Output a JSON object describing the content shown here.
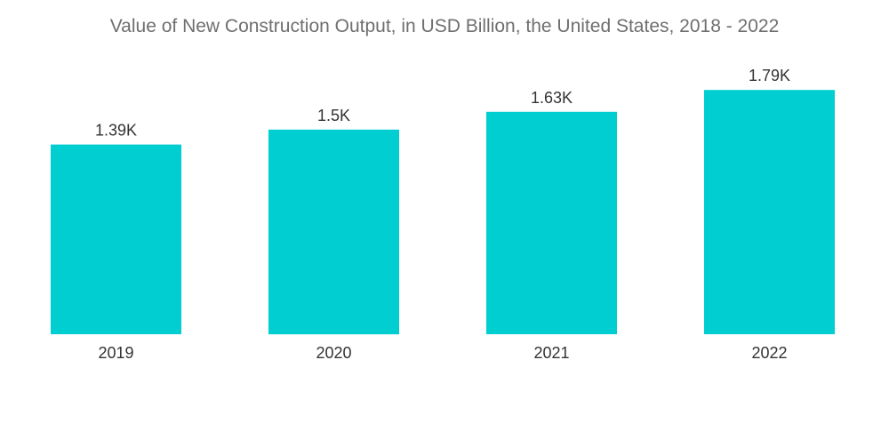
{
  "chart_data": {
    "type": "bar",
    "title": "Value of New Construction Output, in USD Billion, the United States, 2018 - 2022",
    "categories": [
      "2019",
      "2020",
      "2021",
      "2022"
    ],
    "values": [
      1390,
      1500,
      1630,
      1790
    ],
    "data_labels": [
      "1.39K",
      "1.5K",
      "1.63K",
      "1.79K"
    ],
    "xlabel": "",
    "ylabel": "",
    "ylim": [
      0,
      1900
    ],
    "grid": false,
    "legend": "none",
    "colors": {
      "bar": "#00ced1",
      "text": "#333333",
      "title": "#6f6f6f"
    }
  }
}
